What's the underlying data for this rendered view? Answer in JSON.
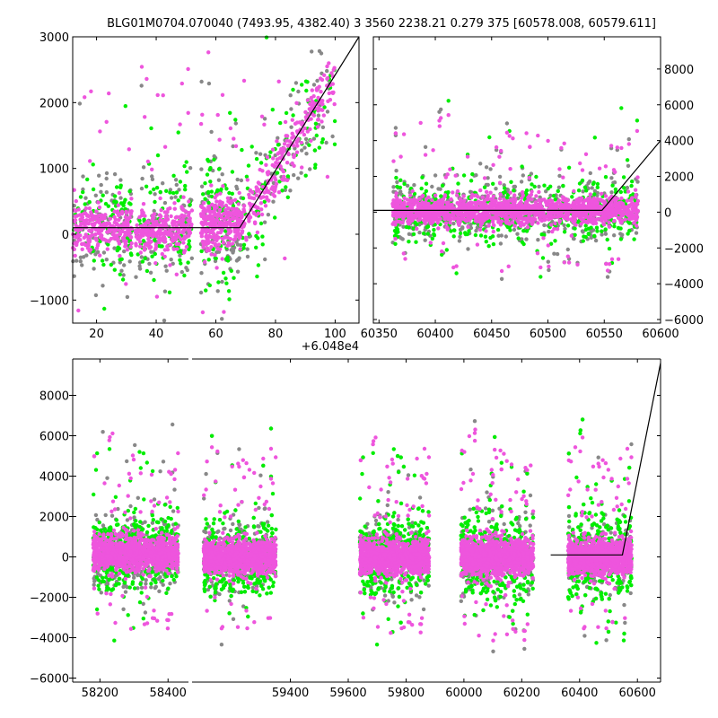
{
  "figure": {
    "title": "BLG01M0704.070040 (7493.95, 4382.40)   3 3560 2238.21 0.279 375 [60578.008, 60579.611]"
  },
  "colors": {
    "series_primary": "#ee55dd",
    "series_secondary": "#00ee00",
    "series_tertiary": "#888888",
    "model": "#000000",
    "axes": "#000000",
    "background": "#ffffff"
  },
  "chart_data": [
    {
      "type": "scatter",
      "panel": "top-left zoom",
      "xlim": [
        12,
        108
      ],
      "ylim": [
        -1350,
        3000
      ],
      "xticks": [
        "20",
        "40",
        "60",
        "80",
        "100"
      ],
      "xtick_values": [
        20,
        40,
        60,
        80,
        100
      ],
      "yticks": [
        "−1000",
        "0",
        "1000",
        "2000",
        "3000"
      ],
      "ytick_values": [
        -1000,
        0,
        1000,
        2000,
        3000
      ],
      "x_offset_label": "+6.048e4",
      "model_line": {
        "x": [
          12,
          68,
          108
        ],
        "y": [
          100,
          100,
          3000
        ]
      },
      "seasons": [
        {
          "x0": 12,
          "x1": 32,
          "center": 100,
          "spread": 400
        },
        {
          "x0": 33,
          "x1": 52,
          "center": 100,
          "spread": 450
        },
        {
          "x0": 55,
          "x1": 68,
          "center": 150,
          "spread": 500
        },
        {
          "x0": 68,
          "x1": 100,
          "center": "model",
          "spread": 450
        }
      ]
    },
    {
      "type": "scatter",
      "panel": "top-right",
      "xlim": [
        60345,
        60600
      ],
      "ylim": [
        -6200,
        9800
      ],
      "xticks": [
        "60350",
        "60400",
        "60450",
        "60500",
        "60550",
        "60600"
      ],
      "xtick_values": [
        60350,
        60400,
        60450,
        60500,
        60550,
        60600
      ],
      "yticks": [
        "−6000",
        "−4000",
        "−2000",
        "0",
        "2000",
        "4000",
        "6000",
        "8000"
      ],
      "ytick_values": [
        -6000,
        -4000,
        -2000,
        0,
        2000,
        4000,
        6000,
        8000
      ],
      "yaxis_side": "right",
      "model_line": {
        "x": [
          60345,
          60548,
          60600
        ],
        "y": [
          100,
          100,
          4000
        ]
      },
      "seasons": [
        {
          "x0": 60362,
          "x1": 60580,
          "center": 100,
          "spread": 900
        }
      ]
    },
    {
      "type": "scatter",
      "panel": "bottom full",
      "xbreak": true,
      "segments": [
        {
          "xlim": [
            58120,
            58460
          ],
          "xticks": [
            "58200",
            "58400"
          ],
          "xtick_values": [
            58200,
            58400
          ]
        },
        {
          "xlim": [
            59060,
            60680
          ],
          "xticks": [
            "59400",
            "59600",
            "59800",
            "60000",
            "60200",
            "60400",
            "60600"
          ],
          "xtick_values": [
            59400,
            59600,
            59800,
            60000,
            60200,
            60400,
            60600
          ]
        }
      ],
      "ylim": [
        -6200,
        9800
      ],
      "yticks": [
        "−6000",
        "−4000",
        "−2000",
        "0",
        "2000",
        "4000",
        "6000",
        "8000"
      ],
      "ytick_values": [
        -6000,
        -4000,
        -2000,
        0,
        2000,
        4000,
        6000,
        8000
      ],
      "model_line": {
        "x": [
          60300,
          60548,
          60680
        ],
        "y": [
          100,
          100,
          9600
        ]
      },
      "seasons": [
        {
          "x0": 58180,
          "x1": 58430,
          "center": 200,
          "spread": 1000
        },
        {
          "x0": 59100,
          "x1": 59350,
          "center": 0,
          "spread": 1000
        },
        {
          "x0": 59640,
          "x1": 59880,
          "center": 0,
          "spread": 1000
        },
        {
          "x0": 59990,
          "x1": 60240,
          "center": 0,
          "spread": 1100
        },
        {
          "x0": 60360,
          "x1": 60580,
          "center": 0,
          "spread": 1000
        }
      ]
    }
  ]
}
